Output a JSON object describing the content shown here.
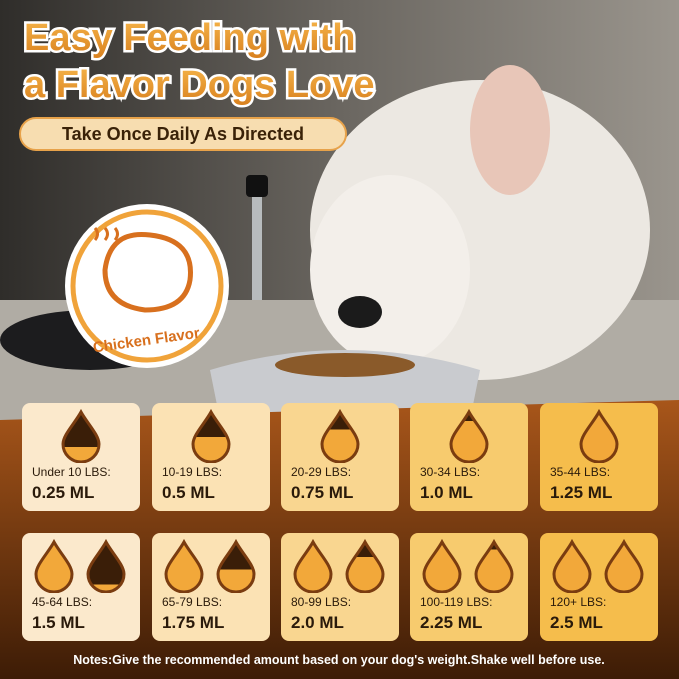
{
  "header": {
    "title_lines": [
      "Easy Feeding with",
      "a Flavor Dogs Love"
    ],
    "subtitle": "Take Once Daily As Directed"
  },
  "badge": {
    "label": "Chicken Flavor"
  },
  "dosage": [
    {
      "weight": "Under 10 LBS:",
      "dose": "0.25 ML"
    },
    {
      "weight": "10-19 LBS:",
      "dose": "0.5 ML"
    },
    {
      "weight": "20-29 LBS:",
      "dose": "0.75 ML"
    },
    {
      "weight": "30-34 LBS:",
      "dose": "1.0 ML"
    },
    {
      "weight": "35-44 LBS:",
      "dose": "1.25 ML"
    },
    {
      "weight": "45-64 LBS:",
      "dose": "1.5 ML"
    },
    {
      "weight": "65-79 LBS:",
      "dose": "1.75 ML"
    },
    {
      "weight": "80-99 LBS:",
      "dose": "2.0 ML"
    },
    {
      "weight": "100-119 LBS:",
      "dose": "2.25 ML"
    },
    {
      "weight": "120+ LBS:",
      "dose": "2.5 ML"
    }
  ],
  "notes": "Notes:Give the recommended amount based on your dog's weight.Shake well before use."
}
